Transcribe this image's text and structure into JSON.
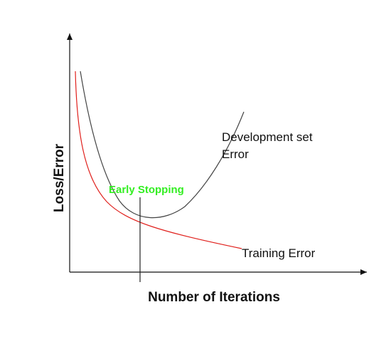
{
  "diagram": {
    "y_axis_label": "Loss/Error",
    "x_axis_label": "Number of Iterations",
    "dev_curve_label_line1": "Development set",
    "dev_curve_label_line2": "Error",
    "training_curve_label": "Training Error",
    "early_stopping_label": "Early Stopping"
  },
  "colors": {
    "axis": "#111111",
    "development_curve": "#444444",
    "training_curve": "#e0201c",
    "early_stopping_text": "#33ee22",
    "early_stopping_marker": "#222222"
  }
}
